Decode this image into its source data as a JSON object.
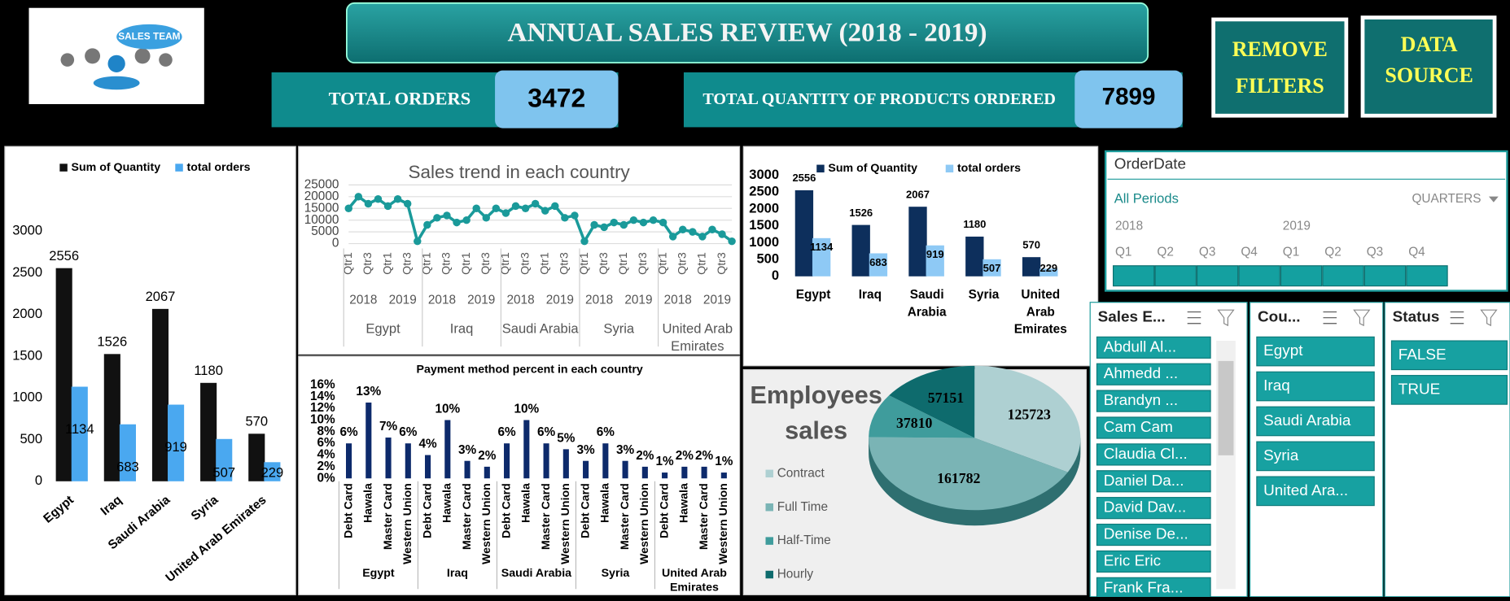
{
  "header": {
    "logo_text": "SALES TEAM",
    "title": "ANNUAL SALES REVIEW  (2018 - 2019)"
  },
  "kpis": [
    {
      "label": "TOTAL ORDERS",
      "value": 3472
    },
    {
      "label": "TOTAL QUANTITY OF  PRODUCTS ORDERED",
      "value": 7899
    }
  ],
  "buttons": [
    "REMOVE FILTERS",
    "DATA SOURCE"
  ],
  "chart_data": [
    {
      "type": "bar",
      "categories": [
        "Egypt",
        "Iraq",
        "Saudi Arabia",
        "Syria",
        "United Arab Emirates"
      ],
      "series": [
        {
          "name": "Sum of Quantity",
          "color": "#111111",
          "values": [
            2556,
            1526,
            2067,
            1180,
            570
          ]
        },
        {
          "name": "total orders",
          "color": "#4aa8f0",
          "values": [
            1134,
            683,
            919,
            507,
            229
          ]
        }
      ],
      "ylim": [
        0,
        3000
      ],
      "yticks": [
        0,
        500,
        1000,
        1500,
        2000,
        2500,
        3000
      ]
    },
    {
      "type": "line",
      "title": "Sales trend in each country",
      "categories": [
        "Qtr1",
        null,
        "Qtr3",
        null,
        "Qtr1",
        null,
        "Qtr3",
        null,
        "Qtr1",
        null,
        "Qtr3",
        null,
        "Qtr1",
        null,
        "Qtr3",
        null,
        "Qtr1",
        null,
        "Qtr3",
        null,
        "Qtr1",
        null,
        "Qtr3",
        null,
        "Qtr1",
        null,
        "Qtr3",
        null,
        "Qtr1",
        null,
        "Qtr3",
        null,
        "Qtr1",
        null,
        "Qtr3",
        null,
        "Qtr1",
        null,
        "Qtr3",
        null
      ],
      "years": [
        "2018",
        "2019",
        "2018",
        "2019",
        "2018",
        "2019",
        "2018",
        "2019",
        "2018",
        "2019"
      ],
      "countries": [
        "Egypt",
        "Iraq",
        "Saudi Arabia",
        "Syria",
        "United Arab Emirates"
      ],
      "values": [
        15000,
        20000,
        17000,
        19000,
        16000,
        19000,
        17000,
        1000,
        8000,
        11000,
        12000,
        9000,
        10000,
        15000,
        11000,
        15000,
        13000,
        16000,
        15000,
        17000,
        14000,
        16000,
        11000,
        12000,
        1000,
        8000,
        7000,
        9000,
        8000,
        10000,
        9000,
        10000,
        9000,
        3000,
        6000,
        5000,
        3000,
        6000,
        4000,
        1000
      ],
      "color": "#1a9a9a",
      "ylim": [
        0,
        25000
      ],
      "yticks": [
        0,
        5000,
        10000,
        15000,
        20000,
        25000
      ],
      "grid": true
    },
    {
      "type": "bar",
      "categories": [
        "Egypt",
        "Iraq",
        "Saudi Arabia",
        "Syria",
        "United Arab Emirates"
      ],
      "series": [
        {
          "name": "Sum of Quantity",
          "color": "#0d2f5c",
          "values": [
            2556,
            1526,
            2067,
            1180,
            570
          ]
        },
        {
          "name": "total orders",
          "color": "#8ec9f5",
          "values": [
            1134,
            683,
            919,
            507,
            229
          ]
        }
      ],
      "ylim": [
        0,
        3000
      ],
      "yticks": [
        0,
        500,
        1000,
        1500,
        2000,
        2500,
        3000
      ]
    },
    {
      "type": "bar",
      "title": "Payment method percent  in each country",
      "categories": [
        "Debt Card",
        "Hawala",
        "Master Card",
        "Western Union",
        "Debt Card",
        "Hawala",
        "Master Card",
        "Western Union",
        "Debt Card",
        "Hawala",
        "Master Card",
        "Western Union",
        "Debt Card",
        "Hawala",
        "Master Card",
        "Western Union",
        "Debt Card",
        "Hawala",
        "Master Card",
        "Western Union"
      ],
      "groups": [
        "Egypt",
        "Iraq",
        "Saudi Arabia",
        "Syria",
        "United Arab Emirates"
      ],
      "values": [
        6,
        13,
        7,
        6,
        4,
        10,
        3,
        2,
        6,
        10,
        6,
        5,
        3,
        6,
        3,
        2,
        1,
        2,
        2,
        1
      ],
      "value_labels": [
        "6%",
        "13%",
        "7%",
        "6%",
        "4%",
        "10%",
        "3%",
        "2%",
        "6%",
        "10%",
        "6%",
        "5%",
        "3%",
        "6%",
        "3%",
        "2%",
        "1%",
        "2%",
        "2%",
        "1%"
      ],
      "color": "#0d2a6b",
      "ylim": [
        0,
        16
      ],
      "yticks": [
        {
          "value": 0,
          "label": "0%"
        },
        {
          "value": 2,
          "label": "2%"
        },
        {
          "value": 4,
          "label": "4%"
        },
        {
          "value": 6,
          "label": "6%"
        },
        {
          "value": 8,
          "label": "8%"
        },
        {
          "value": 10,
          "label": "10%"
        },
        {
          "value": 12,
          "label": "12%"
        },
        {
          "value": 14,
          "label": "14%"
        },
        {
          "value": 16,
          "label": "16%"
        }
      ]
    },
    {
      "type": "pie",
      "title": "Employees sales",
      "categories": [
        "Contract",
        "Full Time",
        "Half-Time",
        "Hourly"
      ],
      "values": [
        125723,
        161782,
        37810,
        57151
      ],
      "colors": [
        "#aed0d2",
        "#7ab4b5",
        "#3f9c9c",
        "#0e6b6d"
      ]
    }
  ],
  "timeline": {
    "title": "OrderDate",
    "selection": "All Periods",
    "level": "QUARTERS",
    "years": [
      "2018",
      "2019"
    ],
    "quarters": [
      "Q1",
      "Q2",
      "Q3",
      "Q4",
      "Q1",
      "Q2",
      "Q3",
      "Q4"
    ]
  },
  "slicers": [
    {
      "title": "Sales E...",
      "items": [
        "Abdull Al...",
        "Ahmedd ...",
        "Brandyn ...",
        "Cam Cam",
        "Claudia Cl...",
        "Daniel Da...",
        "David Dav...",
        "Denise De...",
        "Eric Eric",
        "Frank Fra..."
      ]
    },
    {
      "title": "Cou...",
      "items": [
        "Egypt",
        "Iraq",
        "Saudi Arabia",
        "Syria",
        "United Ara..."
      ]
    },
    {
      "title": "Status",
      "items": [
        "FALSE",
        "TRUE"
      ]
    }
  ]
}
